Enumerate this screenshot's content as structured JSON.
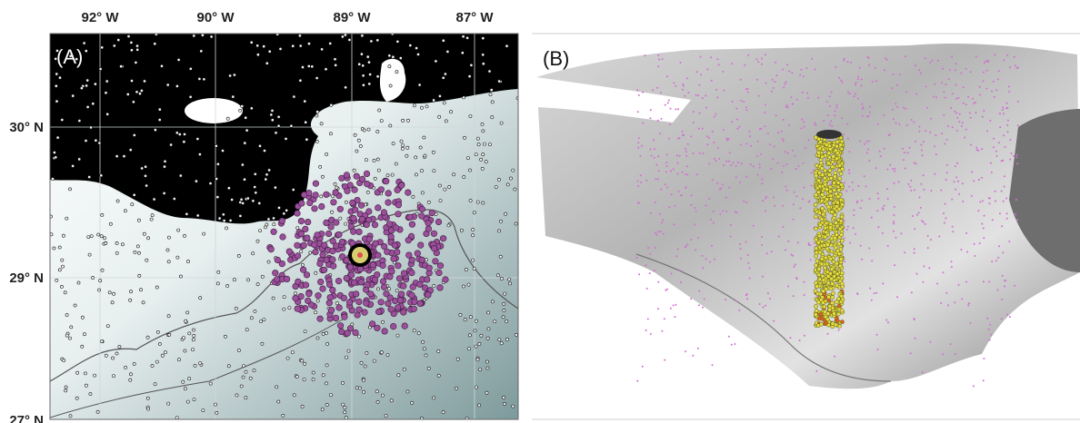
{
  "panel_a": {
    "label": "(A)",
    "lon_labels": [
      "92° W",
      "90° W",
      "89° W",
      "87° W"
    ],
    "lat_labels": [
      "30° N",
      "29° N",
      "27° N"
    ]
  },
  "panel_b": {
    "label": "(B)"
  }
}
